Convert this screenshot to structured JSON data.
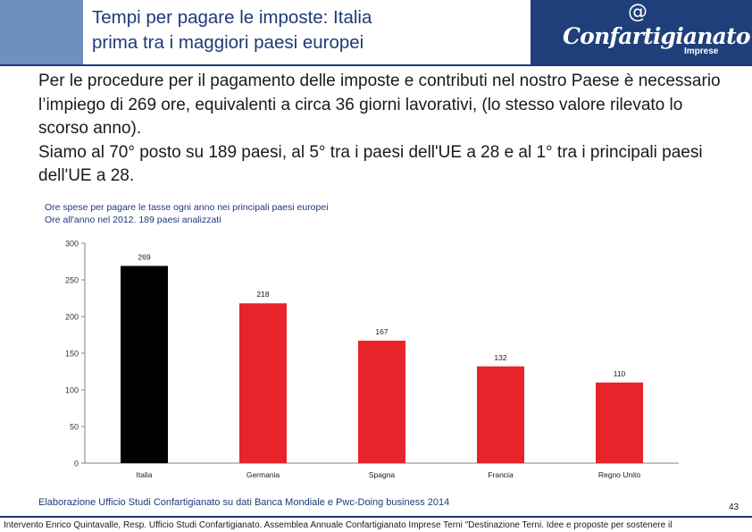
{
  "header": {
    "title_line1": "Tempi per pagare le imposte: Italia",
    "title_line2": "prima tra i maggiori paesi europei",
    "logo_at": "@",
    "logo_name": "Confartigianato",
    "logo_sub": "Imprese"
  },
  "body": {
    "paragraph1": "Per le procedure per il pagamento delle imposte e contributi nel nostro Paese è necessario l’impiego di 269 ore, equivalenti a circa 36 giorni lavorativi, (lo stesso valore rilevato lo scorso anno).",
    "paragraph2": "Siamo al 70° posto su 189 paesi, al 5° tra i paesi dell'UE a 28 e al 1° tra i principali paesi dell'UE a 28."
  },
  "chart_caption": {
    "line1": "Ore spese per pagare le tasse ogni anno nei principali paesi europei",
    "line2": "Ore all'anno nel 2012. 189 paesi analizzati"
  },
  "chart_data": {
    "type": "bar",
    "categories": [
      "Italia",
      "Germania",
      "Spagna",
      "Francia",
      "Regno Unito"
    ],
    "values": [
      269,
      218,
      167,
      132,
      110
    ],
    "data_labels": [
      "269",
      "218",
      "167",
      "132",
      "110"
    ],
    "ylim": [
      0,
      300
    ],
    "yticks": [
      0,
      50,
      100,
      150,
      200,
      250,
      300
    ],
    "ytick_labels": [
      "0",
      "50",
      "100",
      "150",
      "200",
      "250",
      "300"
    ],
    "grid": false,
    "legend": "none",
    "bar_colors": [
      "#000000",
      "#e8242b",
      "#e8242b",
      "#e8242b",
      "#e8242b"
    ]
  },
  "footer": {
    "source": "Elaborazione Ufficio Studi Confartigianato su dati Banca Mondiale e Pwc-Doing business 2014",
    "page_number": "43",
    "credit": "Intervento Enrico Quintavalle, Resp. Ufficio Studi Confartigianato. Assemblea Annuale Confartigianato Imprese Terni \"Destinazione Terni. Idee e proposte per sostenere il"
  },
  "colors": {
    "header_blue": "#1e3f7a",
    "side_blue": "#6f8fbf",
    "title_text": "#1e3a7a"
  }
}
